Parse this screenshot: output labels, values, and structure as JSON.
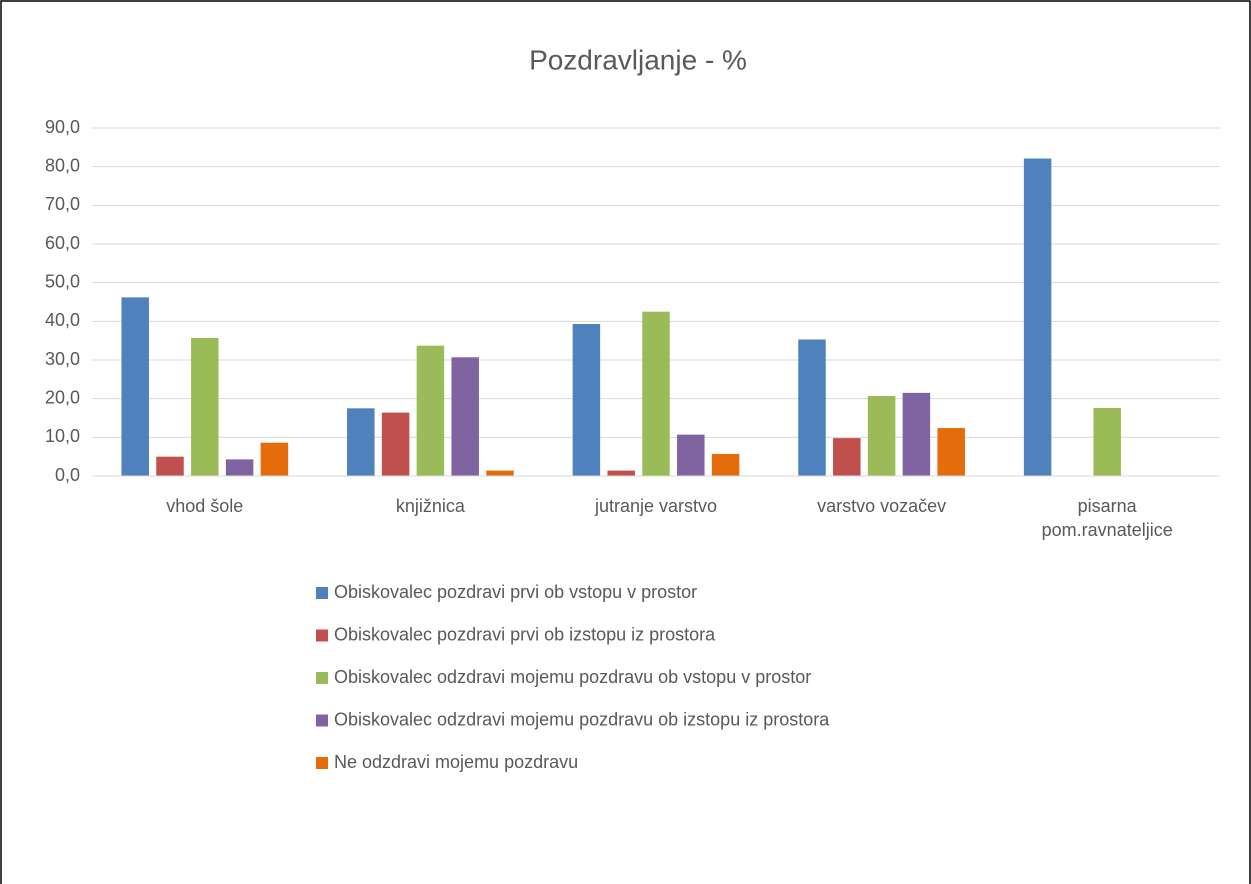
{
  "chart_data": {
    "type": "bar",
    "title": "Pozdravljanje - %",
    "categories": [
      "vhod šole",
      "knjižnica",
      "jutranje varstvo",
      "varstvo vozačev",
      "pisarna pom.ravnateljice"
    ],
    "series": [
      {
        "name": "Obiskovalec pozdravi prvi ob vstopu v prostor",
        "color": "#4f81bd",
        "values": [
          46.2,
          17.5,
          39.3,
          35.3,
          82.1
        ]
      },
      {
        "name": "Obiskovalec pozdravi prvi ob izstopu iz prostora",
        "color": "#c0504d",
        "values": [
          5.0,
          16.4,
          1.4,
          9.8,
          0
        ]
      },
      {
        "name": "Obiskovalec odzdravi mojemu pozdravu ob vstopu v prostor",
        "color": "#9bbb59",
        "values": [
          35.7,
          33.7,
          42.5,
          20.7,
          17.6
        ]
      },
      {
        "name": "Obiskovalec odzdravi mojemu pozdravu ob izstopu iz prostora",
        "color": "#8064a2",
        "values": [
          4.3,
          30.7,
          10.7,
          21.5,
          0
        ]
      },
      {
        "name": "Ne odzdravi mojemu pozdravu",
        "color": "#e46c0a",
        "values": [
          8.6,
          1.4,
          5.7,
          12.4,
          0
        ]
      }
    ],
    "ylim": [
      0,
      90
    ],
    "yticks": [
      {
        "value": 0,
        "label": "0,0"
      },
      {
        "value": 10,
        "label": "10,0"
      },
      {
        "value": 20,
        "label": "20,0"
      },
      {
        "value": 30,
        "label": "30,0"
      },
      {
        "value": 40,
        "label": "40,0"
      },
      {
        "value": 50,
        "label": "50,0"
      },
      {
        "value": 60,
        "label": "60,0"
      },
      {
        "value": 70,
        "label": "70,0"
      },
      {
        "value": 80,
        "label": "80,0"
      },
      {
        "value": 90,
        "label": "90,0"
      }
    ],
    "grid": true,
    "legend": "bottom"
  }
}
